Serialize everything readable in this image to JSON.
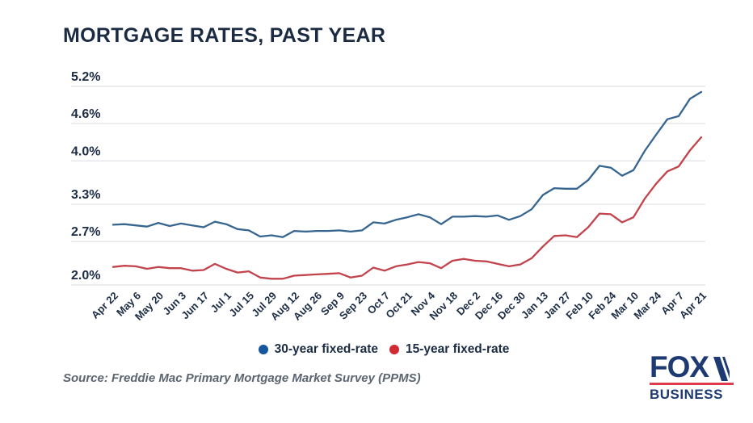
{
  "title": "MORTGAGE RATES, PAST YEAR",
  "source": "Source: Freddie Mac Primary Mortgage Market Survey (PPMS)",
  "logo": {
    "line1": "FOX",
    "line2": "BUSINESS"
  },
  "colors": {
    "title_text": "#1b2b42",
    "axis_text": "#1c2c44",
    "gridline": "#e3e5e8",
    "source_text": "#5b6570",
    "logo_navy": "#1e3a72",
    "logo_red": "#e13a4a",
    "background": "#ffffff"
  },
  "chart_data": {
    "type": "line",
    "title": "MORTGAGE RATES, PAST YEAR",
    "xlabel": "",
    "ylabel": "",
    "grid": "horizontal",
    "legend_position": "bottom",
    "ylim": [
      1.85,
      5.45
    ],
    "y_ticks": {
      "labels": [
        "5.2%",
        "4.6%",
        "4.0%",
        "3.3%",
        "2.7%",
        "2.0%"
      ],
      "values": [
        5.2,
        4.6,
        4.0,
        3.3,
        2.7,
        2.0
      ]
    },
    "x": [
      "Apr 22",
      "Apr 29",
      "May 6",
      "May 13",
      "May 20",
      "May 27",
      "Jun 3",
      "Jun 10",
      "Jun 17",
      "Jun 24",
      "Jul 1",
      "Jul 8",
      "Jul 15",
      "Jul 22",
      "Jul 29",
      "Aug 5",
      "Aug 12",
      "Aug 19",
      "Aug 26",
      "Sep 2",
      "Sep 9",
      "Sep 16",
      "Sep 23",
      "Sep 30",
      "Oct 7",
      "Oct 14",
      "Oct 21",
      "Oct 28",
      "Nov 4",
      "Nov 11",
      "Nov 18",
      "Nov 24",
      "Dec 2",
      "Dec 9",
      "Dec 16",
      "Dec 23",
      "Dec 30",
      "Jan 6",
      "Jan 13",
      "Jan 20",
      "Jan 27",
      "Feb 3",
      "Feb 10",
      "Feb 17",
      "Feb 24",
      "Mar 3",
      "Mar 10",
      "Mar 17",
      "Mar 24",
      "Mar 31",
      "Apr 7",
      "Apr 14",
      "Apr 21"
    ],
    "x_labels_shown": [
      "Apr 22",
      "May 6",
      "May 20",
      "Jun 3",
      "Jun 17",
      "Jul 1",
      "Jul 15",
      "Jul 29",
      "Aug 12",
      "Aug 26",
      "Sep 9",
      "Sep 23",
      "Oct 7",
      "Oct 21",
      "Nov 4",
      "Nov 18",
      "Dec 2",
      "Dec 16",
      "Dec 30",
      "Jan 13",
      "Jan 27",
      "Feb 10",
      "Feb 24",
      "Mar 10",
      "Mar 24",
      "Apr 7",
      "Apr 21"
    ],
    "series": [
      {
        "name": "30-year fixed-rate",
        "color": "#36658f",
        "dot_color": "#15579e",
        "values": [
          2.97,
          2.98,
          2.96,
          2.94,
          3.0,
          2.95,
          2.99,
          2.96,
          2.93,
          3.02,
          2.98,
          2.9,
          2.88,
          2.78,
          2.8,
          2.77,
          2.87,
          2.86,
          2.87,
          2.87,
          2.88,
          2.86,
          2.88,
          3.01,
          2.99,
          3.05,
          3.09,
          3.14,
          3.09,
          2.98,
          3.1,
          3.1,
          3.11,
          3.1,
          3.12,
          3.05,
          3.11,
          3.22,
          3.45,
          3.56,
          3.55,
          3.55,
          3.69,
          3.92,
          3.89,
          3.76,
          3.85,
          4.16,
          4.42,
          4.67,
          4.72,
          5.0,
          5.11
        ]
      },
      {
        "name": "15-year fixed-rate",
        "color": "#c2434c",
        "dot_color": "#d12a34",
        "values": [
          2.29,
          2.31,
          2.3,
          2.26,
          2.29,
          2.27,
          2.27,
          2.23,
          2.24,
          2.34,
          2.26,
          2.2,
          2.22,
          2.12,
          2.1,
          2.1,
          2.15,
          2.16,
          2.17,
          2.18,
          2.19,
          2.12,
          2.15,
          2.28,
          2.23,
          2.3,
          2.33,
          2.37,
          2.35,
          2.27,
          2.39,
          2.42,
          2.39,
          2.38,
          2.34,
          2.3,
          2.33,
          2.43,
          2.62,
          2.79,
          2.8,
          2.77,
          2.93,
          3.15,
          3.14,
          3.01,
          3.09,
          3.39,
          3.63,
          3.83,
          3.91,
          4.17,
          4.38
        ]
      }
    ]
  }
}
